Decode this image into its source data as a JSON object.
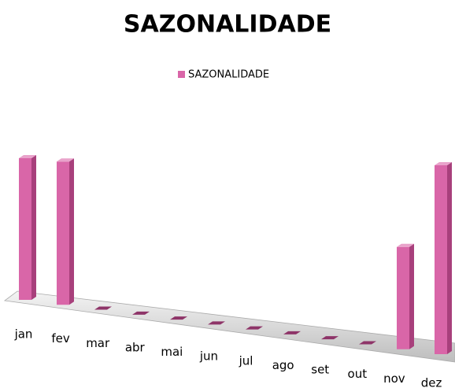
{
  "chart_data": {
    "type": "bar3d",
    "title": "SAZONALIDADE",
    "categories": [
      "jan",
      "fev",
      "mar",
      "abr",
      "mai",
      "jun",
      "jul",
      "ago",
      "set",
      "out",
      "nov",
      "dez"
    ],
    "series": [
      {
        "name": "SAZONALIDADE",
        "color": "#d966a8",
        "values": [
          180,
          182,
          0,
          0,
          0,
          0,
          0,
          0,
          0,
          0,
          130,
          240
        ]
      }
    ],
    "legend": "top"
  }
}
